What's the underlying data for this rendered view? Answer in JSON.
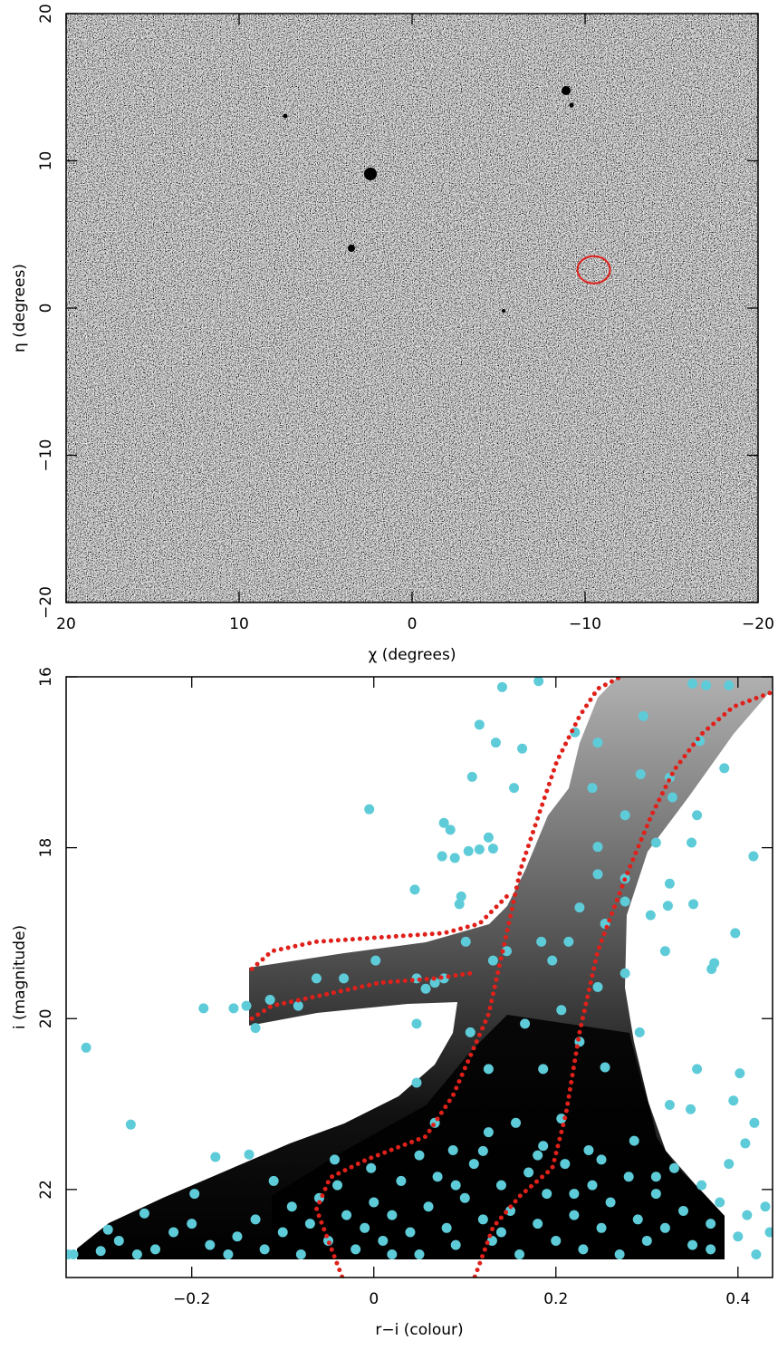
{
  "chart_data": [
    {
      "type": "image",
      "x_label": "χ (degrees)",
      "y_label": "η (degrees)",
      "xlim": [
        20,
        -20
      ],
      "ylim": [
        -20,
        20
      ],
      "xticks": [
        20,
        10,
        0,
        {
          "value": -10,
          "label": "−10"
        },
        {
          "value": -20,
          "label": "−20"
        }
      ],
      "yticks": [
        {
          "value": -20,
          "label": "−20"
        },
        {
          "value": -10,
          "label": "−10"
        },
        0,
        10,
        20
      ],
      "highlight": {
        "x": -10.5,
        "y": 2.6,
        "color": "#e0201a"
      }
    },
    {
      "type": "scatter",
      "x_label": "r−i (colour)",
      "y_label": "i (magnitude)",
      "xlim": [
        -0.338,
        0.438
      ],
      "ylim": [
        23.03,
        16
      ],
      "xticks": [
        {
          "value": -0.2,
          "label": "−0.2"
        },
        0,
        0.2,
        0.4
      ],
      "yticks": [
        16,
        18,
        20,
        22
      ],
      "point_color": "#5ecbd8",
      "x": [
        0.141,
        0.181,
        0.35,
        0.365,
        0.39,
        0.116,
        0.134,
        0.163,
        0.221,
        0.246,
        0.296,
        0.358,
        0.385,
        -0.005,
        0.108,
        0.154,
        0.24,
        0.293,
        0.325,
        0.328,
        0.355,
        0.276,
        0.077,
        0.084,
        0.126,
        0.075,
        0.104,
        0.116,
        0.131,
        0.089,
        0.045,
        0.096,
        0.094,
        0.417,
        0.349,
        0.31,
        0.246,
        0.276,
        0.246,
        0.325,
        0.323,
        0.351,
        0.304,
        0.276,
        0.254,
        0.226,
        0.214,
        0.184,
        0.196,
        0.371,
        0.397,
        0.374,
        0.32,
        0.276,
        0.101,
        0.131,
        0.146,
        0.077,
        0.067,
        0.057,
        0.047,
        0.002,
        -0.063,
        -0.033,
        -0.083,
        -0.114,
        -0.13,
        -0.154,
        -0.187,
        -0.316,
        -0.14,
        0.047,
        0.106,
        0.166,
        0.206,
        0.246,
        0.226,
        0.292,
        0.126,
        0.047,
        0.186,
        0.254,
        0.355,
        0.402,
        0.395,
        0.348,
        0.325,
        0.067,
        0.126,
        0.156,
        0.206,
        -0.267,
        -0.174,
        -0.137,
        -0.043,
        -0.003,
        0.418,
        0.408,
        0.087,
        0.186,
        0.236,
        0.286,
        -0.197,
        -0.252,
        -0.292,
        -0.336,
        -0.33,
        -0.3,
        -0.28,
        -0.26,
        -0.24,
        -0.22,
        -0.2,
        -0.18,
        -0.16,
        -0.15,
        -0.13,
        -0.12,
        -0.1,
        -0.09,
        -0.08,
        -0.07,
        -0.06,
        -0.05,
        -0.04,
        -0.03,
        -0.02,
        -0.01,
        0.0,
        0.01,
        0.02,
        0.03,
        0.04,
        0.05,
        0.06,
        0.07,
        0.08,
        0.09,
        0.1,
        0.11,
        0.12,
        0.13,
        0.14,
        0.15,
        0.16,
        0.17,
        0.18,
        0.19,
        0.2,
        0.21,
        0.22,
        0.23,
        0.24,
        0.25,
        0.26,
        0.27,
        0.28,
        0.29,
        0.3,
        0.31,
        0.32,
        0.33,
        0.34,
        0.35,
        0.36,
        0.37,
        0.38,
        0.39,
        0.4,
        0.41,
        0.42,
        0.43,
        0.435,
        0.12,
        0.18,
        0.25,
        0.05,
        -0.11,
        0.14,
        0.22,
        0.31,
        0.37,
        0.02,
        0.09
      ],
      "y": [
        16.12,
        16.05,
        16.08,
        16.1,
        16.1,
        16.56,
        16.77,
        16.84,
        16.65,
        16.77,
        16.46,
        16.75,
        17.07,
        17.55,
        17.17,
        17.3,
        17.3,
        17.14,
        17.18,
        17.41,
        17.62,
        17.62,
        17.71,
        17.79,
        17.88,
        18.1,
        18.04,
        18.02,
        18.01,
        18.12,
        18.49,
        18.57,
        18.66,
        18.1,
        17.94,
        17.94,
        17.99,
        18.36,
        18.31,
        18.42,
        18.68,
        18.66,
        18.79,
        18.63,
        18.89,
        18.7,
        19.1,
        19.1,
        19.32,
        19.42,
        19.0,
        19.35,
        19.21,
        19.47,
        19.1,
        19.32,
        19.21,
        19.53,
        19.58,
        19.65,
        19.53,
        19.32,
        19.53,
        19.53,
        19.85,
        19.78,
        20.11,
        19.88,
        19.88,
        20.34,
        19.85,
        20.06,
        20.16,
        20.06,
        19.9,
        19.63,
        20.27,
        20.16,
        20.59,
        20.75,
        20.59,
        20.57,
        20.59,
        20.64,
        20.96,
        21.06,
        21.01,
        21.22,
        21.33,
        21.22,
        21.17,
        21.24,
        21.62,
        21.59,
        21.65,
        21.75,
        21.22,
        21.46,
        21.54,
        21.49,
        21.54,
        21.43,
        22.05,
        22.28,
        22.47,
        22.76,
        22.76,
        22.72,
        22.6,
        22.76,
        22.7,
        22.5,
        22.4,
        22.65,
        22.76,
        22.55,
        22.35,
        22.7,
        22.5,
        22.2,
        22.76,
        22.4,
        22.1,
        22.6,
        21.95,
        22.3,
        22.7,
        22.45,
        22.15,
        22.6,
        22.3,
        21.9,
        22.5,
        22.76,
        22.2,
        21.85,
        22.45,
        22.65,
        22.1,
        21.7,
        22.35,
        22.6,
        21.95,
        22.25,
        22.76,
        21.8,
        22.4,
        22.05,
        22.6,
        21.7,
        22.3,
        22.7,
        21.95,
        22.45,
        22.15,
        22.76,
        21.85,
        22.35,
        22.6,
        22.05,
        22.45,
        21.75,
        22.25,
        22.65,
        21.95,
        22.4,
        22.15,
        21.7,
        22.55,
        22.3,
        22.76,
        22.2,
        22.5,
        21.55,
        21.6,
        21.65,
        21.6,
        21.9,
        22.5,
        22.05,
        21.85,
        22.7,
        22.76,
        21.95
      ],
      "lines": [
        {
          "color": "#e0201a",
          "x": [
            -0.035,
            -0.063,
            -0.048,
            -0.008,
            0.057,
            0.087,
            0.126,
            0.146,
            0.161,
            0.181,
            0.201,
            0.226,
            0.246,
            0.271
          ],
          "y": [
            23.02,
            22.23,
            21.86,
            21.65,
            21.38,
            20.9,
            19.95,
            19.0,
            18.26,
            17.62,
            16.99,
            16.46,
            16.14,
            16.0
          ]
        },
        {
          "color": "#e0201a",
          "x": [
            0.111,
            0.131,
            0.161,
            0.196,
            0.211,
            0.226,
            0.246,
            0.276,
            0.305,
            0.33,
            0.36,
            0.395,
            0.435
          ],
          "y": [
            23.02,
            22.44,
            22.07,
            21.75,
            21.12,
            20.16,
            19.21,
            18.36,
            17.62,
            17.09,
            16.67,
            16.35,
            16.19
          ]
        },
        {
          "color": "#e0201a",
          "x": [
            -0.134,
            -0.112,
            -0.063,
            0.007,
            0.077,
            0.116,
            0.146
          ],
          "y": [
            19.42,
            19.21,
            19.1,
            19.05,
            19.0,
            18.89,
            18.57
          ]
        },
        {
          "color": "#e0201a",
          "x": [
            -0.134,
            -0.112,
            -0.063,
            0.007,
            0.067,
            0.106
          ],
          "y": [
            20.0,
            19.85,
            19.74,
            19.58,
            19.53,
            19.47
          ]
        }
      ]
    }
  ]
}
